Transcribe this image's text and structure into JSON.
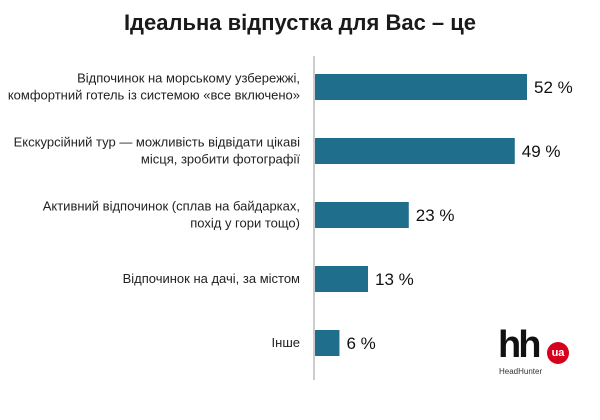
{
  "chart_data": {
    "type": "bar",
    "orientation": "horizontal",
    "title": "Ідеальна відпустка для Вас – це",
    "categories": [
      [
        "Відпочинок на морському узбережжі,",
        "комфортний готель із системою «все включено»"
      ],
      [
        "Екскурсійний тур — можливість відвідати цікаві",
        "місця, зробити фотографії"
      ],
      [
        "Активний відпочинок (сплав на байдарках,",
        "похід у гори тощо)"
      ],
      [
        "Відпочинок на дачі, за містом"
      ],
      [
        "Інше"
      ]
    ],
    "values": [
      52,
      49,
      23,
      13,
      6
    ],
    "value_labels": [
      "52 %",
      "49 %",
      "23 %",
      "13 %",
      "6 %"
    ],
    "xlim": [
      0,
      52
    ],
    "grid": false,
    "legend": "none",
    "bar_color": "#1f6e8c",
    "axis_color": "#9a9a9a"
  },
  "logo": {
    "main": "hh",
    "badge": "ua",
    "sub": "HeadHunter",
    "badge_color": "#d6001c"
  }
}
